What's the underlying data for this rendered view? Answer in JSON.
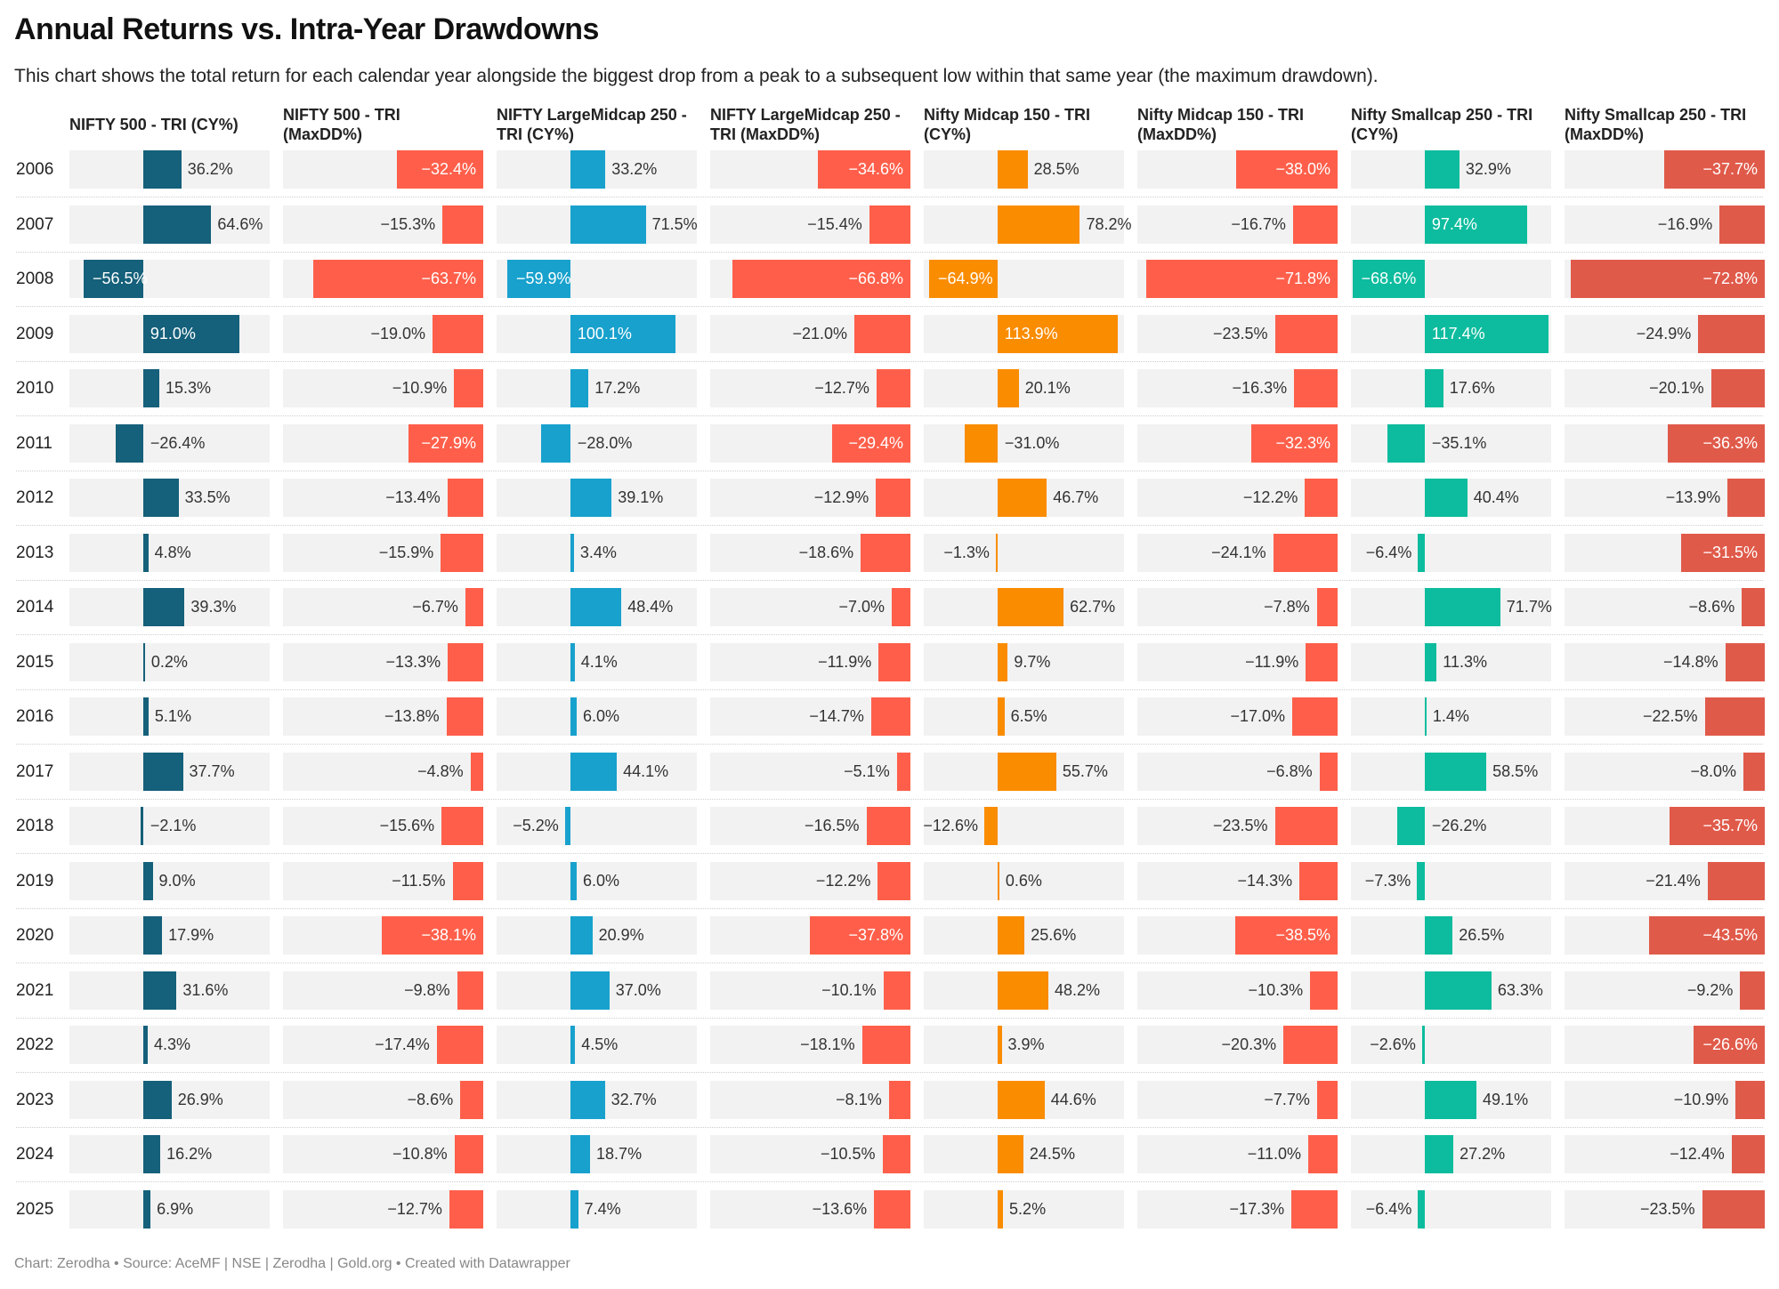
{
  "header": {
    "title": "Annual Returns vs. Intra-Year Drawdowns",
    "subtitle": "This chart shows the total return for each calendar year alongside the biggest drop from a peak to a subsequent low within that same year (the maximum drawdown)."
  },
  "footer": "Chart: Zerodha • Source: AceMF | NSE | Zerodha | Gold.org • Created with Datawrapper",
  "chart_data": {
    "type": "table",
    "title": "Annual Returns vs. Intra-Year Drawdowns",
    "categories": [
      "2006",
      "2007",
      "2008",
      "2009",
      "2010",
      "2011",
      "2012",
      "2013",
      "2014",
      "2015",
      "2016",
      "2017",
      "2018",
      "2019",
      "2020",
      "2021",
      "2022",
      "2023",
      "2024",
      "2025"
    ],
    "series": [
      {
        "name": "NIFTY 500 - TRI (CY%)",
        "kind": "return",
        "color": "#15607a",
        "values": [
          36.2,
          64.6,
          -56.5,
          91.0,
          15.3,
          -26.4,
          33.5,
          4.8,
          39.3,
          0.2,
          5.1,
          37.7,
          -2.1,
          9.0,
          17.9,
          31.6,
          4.3,
          26.9,
          16.2,
          6.9
        ]
      },
      {
        "name": "NIFTY 500 - TRI (MaxDD%)",
        "kind": "drawdown",
        "color": "#ff5f4a",
        "values": [
          -32.4,
          -15.3,
          -63.7,
          -19.0,
          -10.9,
          -27.9,
          -13.4,
          -15.9,
          -6.7,
          -13.3,
          -13.8,
          -4.8,
          -15.6,
          -11.5,
          -38.1,
          -9.8,
          -17.4,
          -8.6,
          -10.8,
          -12.7
        ]
      },
      {
        "name": "NIFTY LargeMidcap 250 - TRI (CY%)",
        "kind": "return",
        "color": "#18a1cd",
        "values": [
          33.2,
          71.5,
          -59.9,
          100.1,
          17.2,
          -28.0,
          39.1,
          3.4,
          48.4,
          4.1,
          6.0,
          44.1,
          -5.2,
          6.0,
          20.9,
          37.0,
          4.5,
          32.7,
          18.7,
          7.4
        ]
      },
      {
        "name": "NIFTY LargeMidcap 250 - TRI (MaxDD%)",
        "kind": "drawdown",
        "color": "#ff5f4a",
        "values": [
          -34.6,
          -15.4,
          -66.8,
          -21.0,
          -12.7,
          -29.4,
          -12.9,
          -18.6,
          -7.0,
          -11.9,
          -14.7,
          -5.1,
          -16.5,
          -12.2,
          -37.8,
          -10.1,
          -18.1,
          -8.1,
          -10.5,
          -13.6
        ]
      },
      {
        "name": "Nifty Midcap 150 - TRI (CY%)",
        "kind": "return",
        "color": "#fa8c00",
        "values": [
          28.5,
          78.2,
          -64.9,
          113.9,
          20.1,
          -31.0,
          46.7,
          -1.3,
          62.7,
          9.7,
          6.5,
          55.7,
          -12.6,
          0.6,
          25.6,
          48.2,
          3.9,
          44.6,
          24.5,
          5.2
        ]
      },
      {
        "name": "Nifty Midcap 150 - TRI (MaxDD%)",
        "kind": "drawdown",
        "color": "#ff5f4a",
        "values": [
          -38.0,
          -16.7,
          -71.8,
          -23.5,
          -16.3,
          -32.3,
          -12.2,
          -24.1,
          -7.8,
          -11.9,
          -17.0,
          -6.8,
          -23.5,
          -14.3,
          -38.5,
          -10.3,
          -20.3,
          -7.7,
          -11.0,
          -17.3
        ]
      },
      {
        "name": "Nifty Smallcap 250 - TRI (CY%)",
        "kind": "return",
        "color": "#0dbc9e",
        "values": [
          32.9,
          97.4,
          -68.6,
          117.4,
          17.6,
          -35.1,
          40.4,
          -6.4,
          71.7,
          11.3,
          1.4,
          58.5,
          -26.2,
          -7.3,
          26.5,
          63.3,
          -2.6,
          49.1,
          27.2,
          -6.4
        ]
      },
      {
        "name": "Nifty Smallcap 250 - TRI (MaxDD%)",
        "kind": "drawdown",
        "color": "#e05a4a",
        "values": [
          -37.7,
          -16.9,
          -72.8,
          -24.9,
          -20.1,
          -36.3,
          -13.9,
          -31.5,
          -8.6,
          -14.8,
          -22.5,
          -8.0,
          -35.7,
          -21.4,
          -43.5,
          -9.2,
          -26.6,
          -10.9,
          -12.4,
          -23.5
        ]
      }
    ],
    "headers": [
      [
        "NIFTY 500 - TRI (CY%)"
      ],
      [
        "NIFTY 500 - TRI",
        "(MaxDD%)"
      ],
      [
        "NIFTY LargeMidcap 250 -",
        "TRI (CY%)"
      ],
      [
        "NIFTY LargeMidcap 250 -",
        "TRI (MaxDD%)"
      ],
      [
        "Nifty Midcap 150 - TRI",
        "(CY%)"
      ],
      [
        "Nifty Midcap 150 - TRI",
        "(MaxDD%)"
      ],
      [
        "Nifty Smallcap 250 - TRI",
        "(CY%)"
      ],
      [
        "Nifty Smallcap 250 - TRI",
        "(MaxDD%)"
      ]
    ],
    "return_range": [
      -70,
      120
    ],
    "drawdown_range": [
      -75,
      0
    ],
    "grid": false,
    "legend": "none"
  }
}
